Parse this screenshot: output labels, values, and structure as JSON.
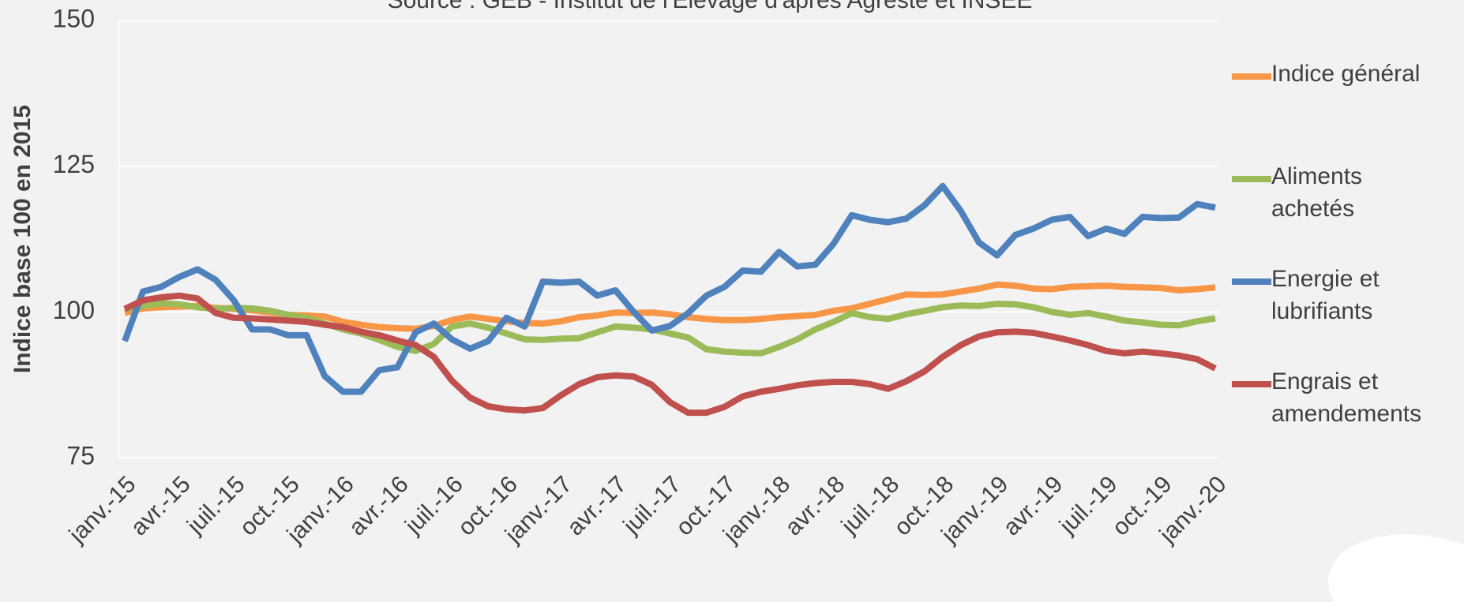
{
  "chart_data": {
    "type": "line",
    "subtitle": "Source : GEB - Institut de l'Elevage d'après Agreste et INSEE",
    "y_label": "Indice base 100 en 2015",
    "categories": [
      "janv.-15",
      null,
      null,
      "avr.-15",
      null,
      null,
      "juil.-15",
      null,
      null,
      "oct.-15",
      null,
      null,
      "janv.-16",
      null,
      null,
      "avr.-16",
      null,
      null,
      "juil.-16",
      null,
      null,
      "oct.-16",
      null,
      null,
      "janv.-17",
      null,
      null,
      "avr.-17",
      null,
      null,
      "juil.-17",
      null,
      null,
      "oct.-17",
      null,
      null,
      "janv.-18",
      null,
      null,
      "avr.-18",
      null,
      null,
      "juil.-18",
      null,
      null,
      "oct.-18",
      null,
      null,
      "janv.-19",
      null,
      null,
      "avr.-19",
      null,
      null,
      "juil.-19",
      null,
      null,
      "oct.-19",
      null,
      null,
      "janv.-20"
    ],
    "series": [
      {
        "name": "Indice général",
        "color": "#f79646",
        "values": [
          99.8,
          100.6,
          100.8,
          100.9,
          101.0,
          100.7,
          100.5,
          100.3,
          99.9,
          99.5,
          99.4,
          99.2,
          98.3,
          97.8,
          97.4,
          97.2,
          97.1,
          97.6,
          98.6,
          99.2,
          98.8,
          98.4,
          98.1,
          98.0,
          98.4,
          99.1,
          99.4,
          99.9,
          99.8,
          99.9,
          99.6,
          99.1,
          98.8,
          98.6,
          98.6,
          98.8,
          99.1,
          99.3,
          99.5,
          100.2,
          100.6,
          101.4,
          102.2,
          103.0,
          102.9,
          103.0,
          103.5,
          104.0,
          104.7,
          104.5,
          104.0,
          103.9,
          104.3,
          104.4,
          104.5,
          104.3,
          104.2,
          104.1,
          103.7,
          103.9,
          104.2
        ]
      },
      {
        "name": "Aliments achetés",
        "color": "#9bbb59",
        "values": [
          100.5,
          101.0,
          101.5,
          101.3,
          100.8,
          100.5,
          100.7,
          100.6,
          100.2,
          99.5,
          99.0,
          98.0,
          97.0,
          96.3,
          95.2,
          94.0,
          93.3,
          94.5,
          97.5,
          98.0,
          97.3,
          96.3,
          95.3,
          95.2,
          95.4,
          95.5,
          96.5,
          97.5,
          97.3,
          97.0,
          96.3,
          95.6,
          93.6,
          93.2,
          93.0,
          92.9,
          94.0,
          95.3,
          97.0,
          98.3,
          99.8,
          99.1,
          98.8,
          99.6,
          100.2,
          100.8,
          101.1,
          101.0,
          101.4,
          101.3,
          100.8,
          100.0,
          99.5,
          99.8,
          99.2,
          98.5,
          98.2,
          97.8,
          97.7,
          98.4,
          98.9
        ]
      },
      {
        "name": "Energie et lubrifiants",
        "color": "#4f81bd",
        "values": [
          95.0,
          103.5,
          104.3,
          106.0,
          107.3,
          105.5,
          102.0,
          97.0,
          97.0,
          96.0,
          96.0,
          89.0,
          86.3,
          86.3,
          90.0,
          90.5,
          96.5,
          98.0,
          95.3,
          93.7,
          95.0,
          99.0,
          97.5,
          105.2,
          105.0,
          105.2,
          102.8,
          103.7,
          100.0,
          96.8,
          97.6,
          99.8,
          102.8,
          104.3,
          107.1,
          106.9,
          110.3,
          107.8,
          108.1,
          111.7,
          116.6,
          115.8,
          115.4,
          116.0,
          118.3,
          121.6,
          117.3,
          111.9,
          109.7,
          113.2,
          114.3,
          115.8,
          116.3,
          113.0,
          114.3,
          113.4,
          116.3,
          116.1,
          116.2,
          118.5,
          117.9
        ]
      },
      {
        "name": "Engrais et amendements",
        "color": "#c0504d",
        "values": [
          100.5,
          102.0,
          102.5,
          102.8,
          102.3,
          99.8,
          99.0,
          98.9,
          98.7,
          98.5,
          98.3,
          97.8,
          97.4,
          96.6,
          96.0,
          95.1,
          94.3,
          92.3,
          88.2,
          85.3,
          83.8,
          83.3,
          83.1,
          83.5,
          85.7,
          87.6,
          88.8,
          89.1,
          88.9,
          87.5,
          84.5,
          82.7,
          82.7,
          83.7,
          85.5,
          86.3,
          86.8,
          87.4,
          87.8,
          88.0,
          88.0,
          87.6,
          86.8,
          88.1,
          89.8,
          92.3,
          94.3,
          95.8,
          96.5,
          96.6,
          96.4,
          95.8,
          95.1,
          94.3,
          93.3,
          92.9,
          93.2,
          92.9,
          92.5,
          91.9,
          90.3
        ]
      }
    ],
    "ylim": [
      75,
      150
    ],
    "yticks": [
      75,
      100,
      125,
      150
    ],
    "grid": true
  }
}
